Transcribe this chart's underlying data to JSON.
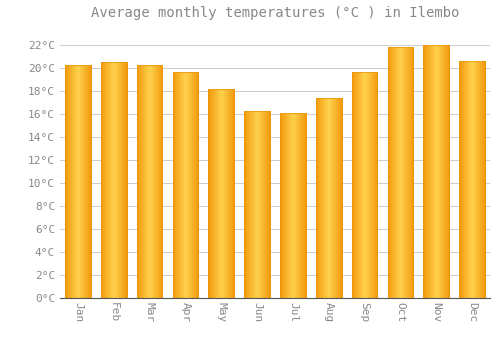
{
  "title": "Average monthly temperatures (°C ) in Ilembo",
  "months": [
    "Jan",
    "Feb",
    "Mar",
    "Apr",
    "May",
    "Jun",
    "Jul",
    "Aug",
    "Sep",
    "Oct",
    "Nov",
    "Dec"
  ],
  "values": [
    20.3,
    20.5,
    20.3,
    19.7,
    18.2,
    16.3,
    16.1,
    17.4,
    19.7,
    21.8,
    22.0,
    20.6
  ],
  "bar_color_face": "#FFC125",
  "bar_color_edge": "#E8960A",
  "background_color": "#FFFFFF",
  "plot_bg_color": "#FFFFFF",
  "grid_color": "#CCCCCC",
  "ylim": [
    0,
    23.5
  ],
  "title_fontsize": 10,
  "tick_fontsize": 8,
  "font_color": "#888888"
}
